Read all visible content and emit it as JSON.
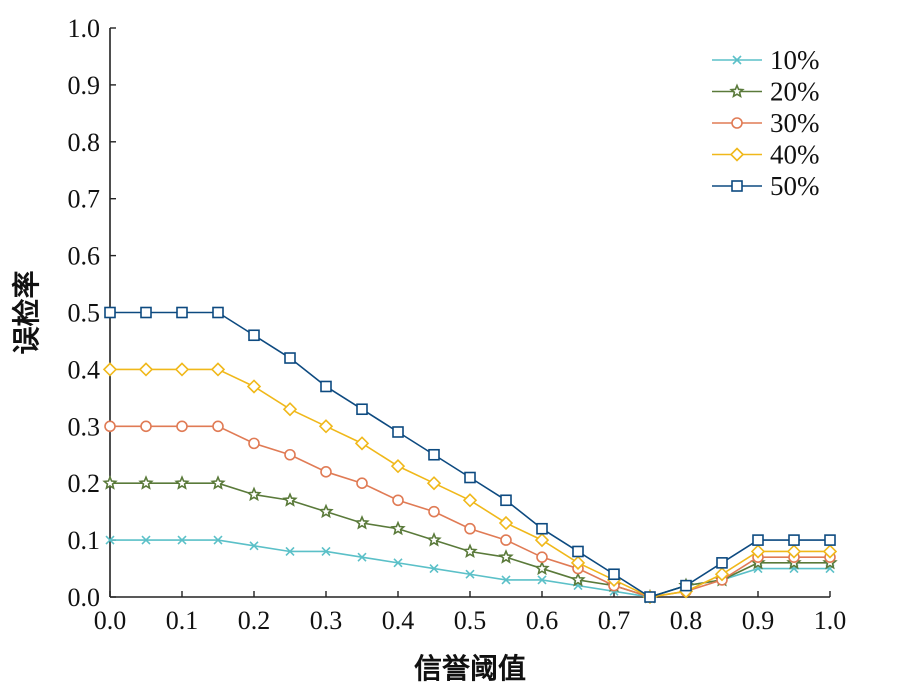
{
  "chart_data": {
    "type": "line",
    "title": "",
    "xlabel": "信誉阈值",
    "ylabel": "误检率",
    "xlim": [
      0.0,
      1.0
    ],
    "ylim": [
      0.0,
      1.0
    ],
    "xticks": [
      "0.0",
      "0.1",
      "0.2",
      "0.3",
      "0.4",
      "0.5",
      "0.6",
      "0.7",
      "0.8",
      "0.9",
      "1.0"
    ],
    "yticks": [
      "0.0",
      "0.1",
      "0.2",
      "0.3",
      "0.4",
      "0.5",
      "0.6",
      "0.7",
      "0.8",
      "0.9",
      "1.0"
    ],
    "grid": false,
    "legend_position": "top-right",
    "x": [
      0.0,
      0.05,
      0.1,
      0.15,
      0.2,
      0.25,
      0.3,
      0.35,
      0.4,
      0.45,
      0.5,
      0.55,
      0.6,
      0.65,
      0.7,
      0.75,
      0.8,
      0.85,
      0.9,
      0.95,
      1.0
    ],
    "series": [
      {
        "name": "10%",
        "color": "#5bc0c8",
        "marker": "x",
        "values": [
          0.1,
          0.1,
          0.1,
          0.1,
          0.09,
          0.08,
          0.08,
          0.07,
          0.06,
          0.05,
          0.04,
          0.03,
          0.03,
          0.02,
          0.01,
          0.0,
          0.02,
          0.03,
          0.05,
          0.05,
          0.05
        ]
      },
      {
        "name": "20%",
        "color": "#5a7a3a",
        "marker": "star",
        "values": [
          0.2,
          0.2,
          0.2,
          0.2,
          0.18,
          0.17,
          0.15,
          0.13,
          0.12,
          0.1,
          0.08,
          0.07,
          0.05,
          0.03,
          0.02,
          0.0,
          0.02,
          0.03,
          0.06,
          0.06,
          0.06
        ]
      },
      {
        "name": "30%",
        "color": "#e07b55",
        "marker": "circle",
        "values": [
          0.3,
          0.3,
          0.3,
          0.3,
          0.27,
          0.25,
          0.22,
          0.2,
          0.17,
          0.15,
          0.12,
          0.1,
          0.07,
          0.05,
          0.02,
          0.0,
          0.01,
          0.03,
          0.07,
          0.07,
          0.07
        ]
      },
      {
        "name": "40%",
        "color": "#f0b81a",
        "marker": "diamond",
        "values": [
          0.4,
          0.4,
          0.4,
          0.4,
          0.37,
          0.33,
          0.3,
          0.27,
          0.23,
          0.2,
          0.17,
          0.13,
          0.1,
          0.06,
          0.03,
          0.0,
          0.01,
          0.04,
          0.08,
          0.08,
          0.08
        ]
      },
      {
        "name": "50%",
        "color": "#0d4a80",
        "marker": "square",
        "values": [
          0.5,
          0.5,
          0.5,
          0.5,
          0.46,
          0.42,
          0.37,
          0.33,
          0.29,
          0.25,
          0.21,
          0.17,
          0.12,
          0.08,
          0.04,
          0.0,
          0.02,
          0.06,
          0.1,
          0.1,
          0.1
        ]
      }
    ]
  }
}
